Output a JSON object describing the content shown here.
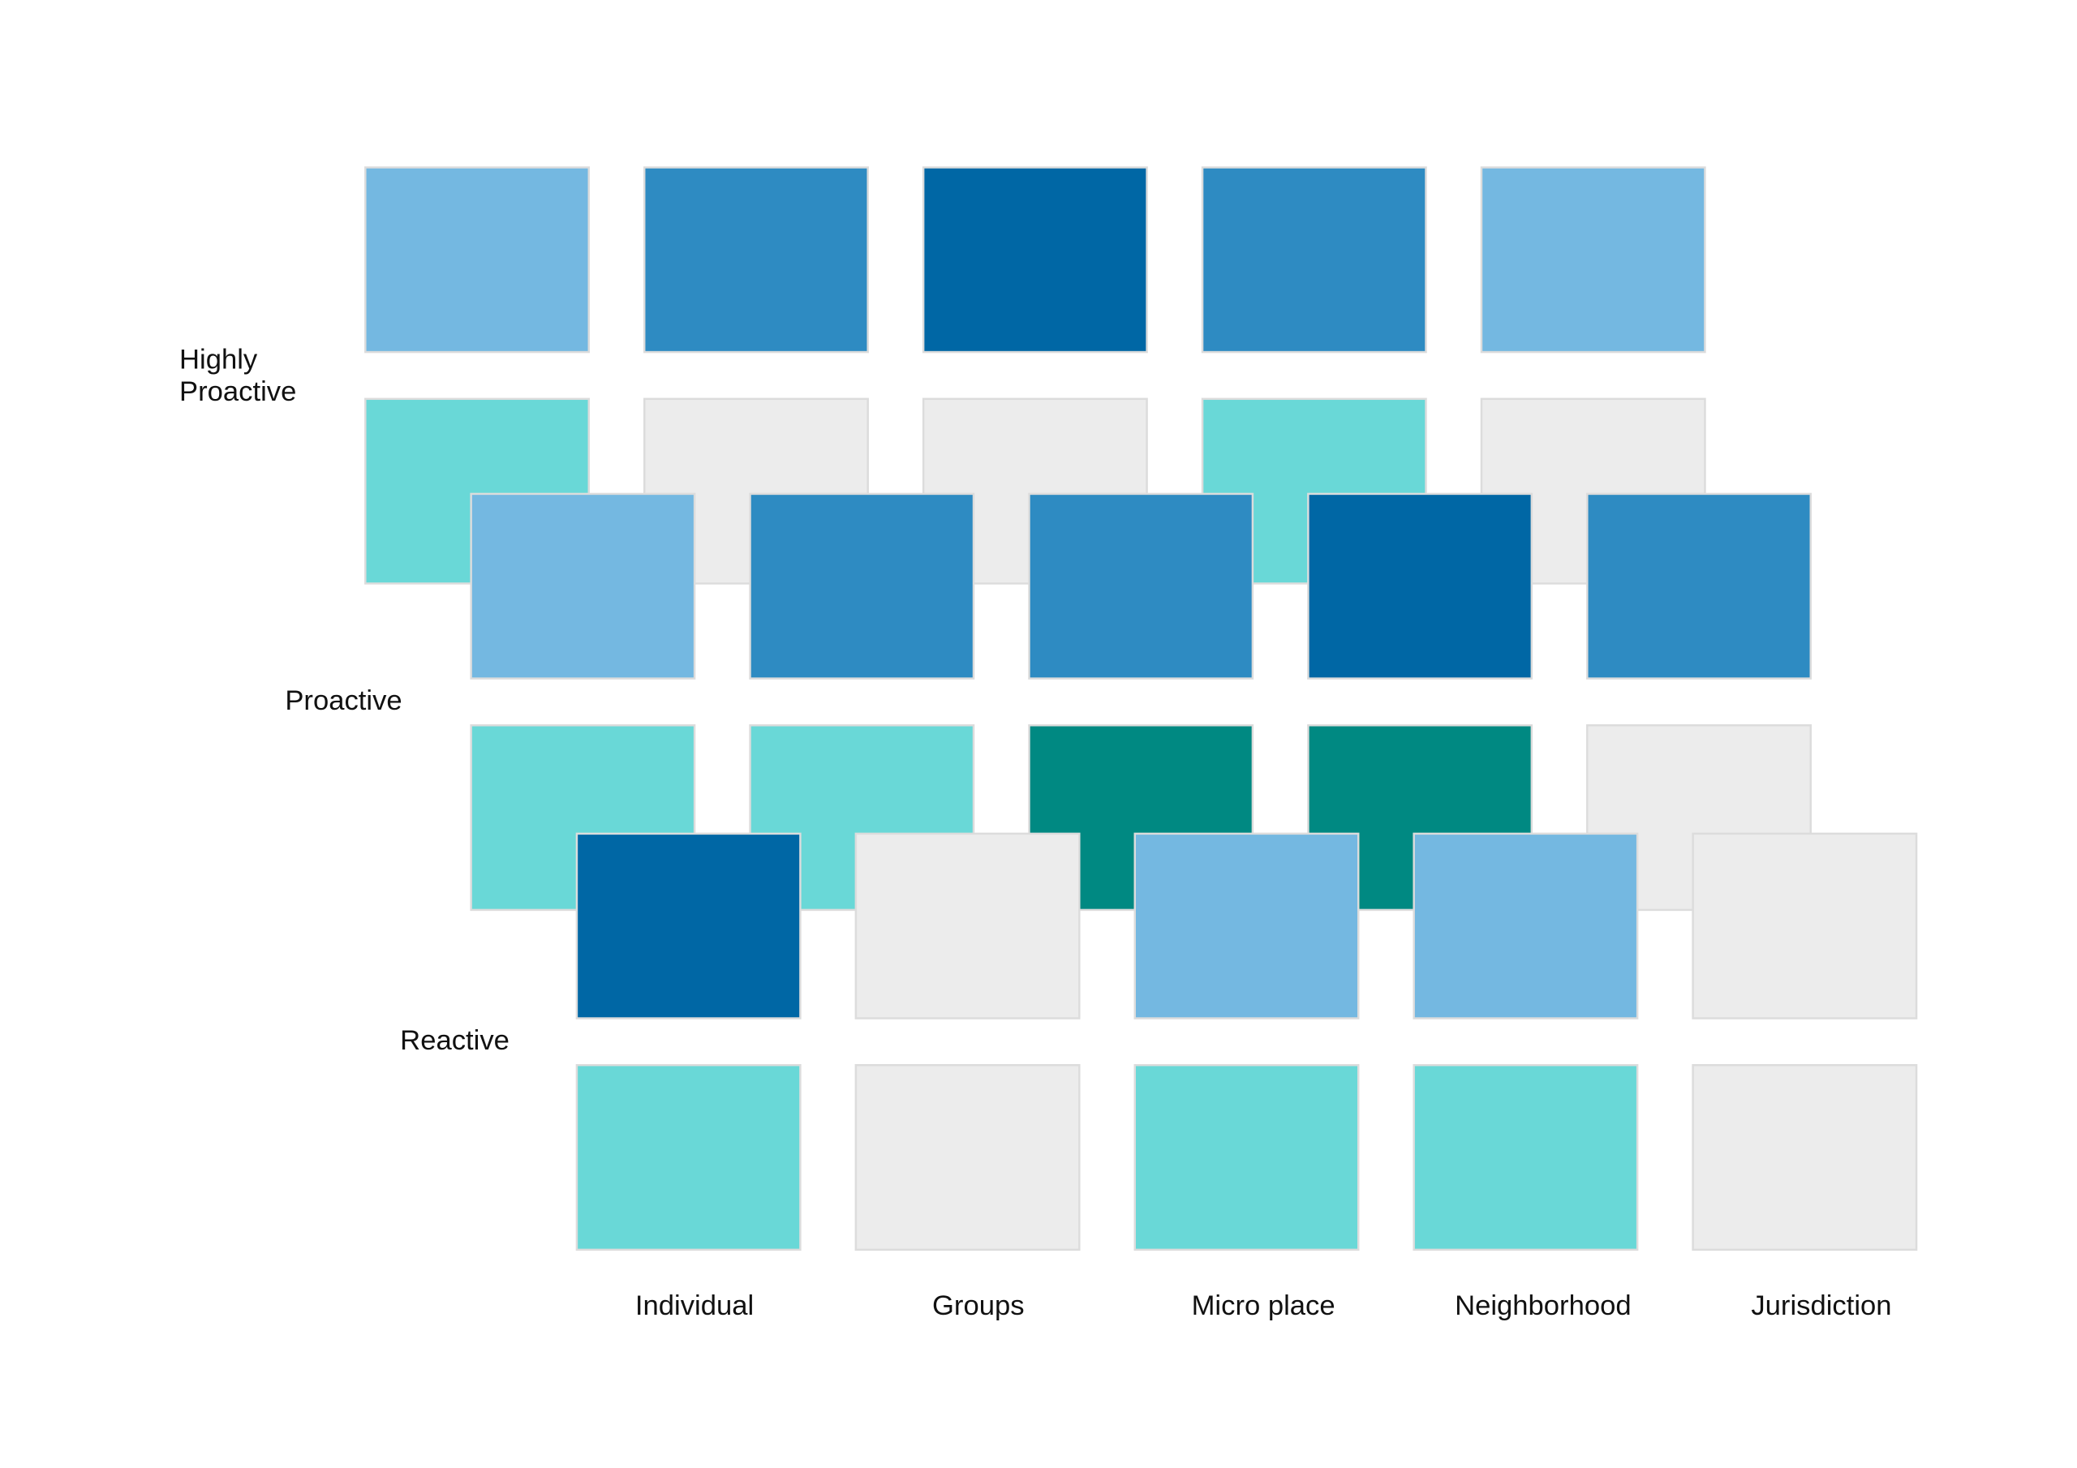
{
  "layers": [
    {
      "label": [
        "Highly",
        "Proactive"
      ],
      "rows": [
        [
          "#74b8e1",
          "#2e8bc2",
          "#0067a5",
          "#2e8bc2",
          "#74b8e1"
        ],
        [
          "#69d8d7",
          "#ececec",
          "#ececec",
          "#69d8d7",
          "#ececec"
        ]
      ]
    },
    {
      "label": [
        "Proactive"
      ],
      "rows": [
        [
          "#74b8e1",
          "#2e8bc2",
          "#2e8bc2",
          "#0067a5",
          "#2e8bc2"
        ],
        [
          "#69d8d7",
          "#69d8d7",
          "#008982",
          "#008982",
          "#ececec"
        ]
      ]
    },
    {
      "label": [
        "Reactive"
      ],
      "rows": [
        [
          "#0067a5",
          "#ececec",
          "#74b8e1",
          "#74b8e1",
          "#ececec"
        ],
        [
          "#69d8d7",
          "#ececec",
          "#69d8d7",
          "#69d8d7",
          "#ececec"
        ]
      ]
    }
  ],
  "columns": [
    "Individual",
    "Groups",
    "Micro place",
    "Neighborhood",
    "Jurisdiction"
  ]
}
